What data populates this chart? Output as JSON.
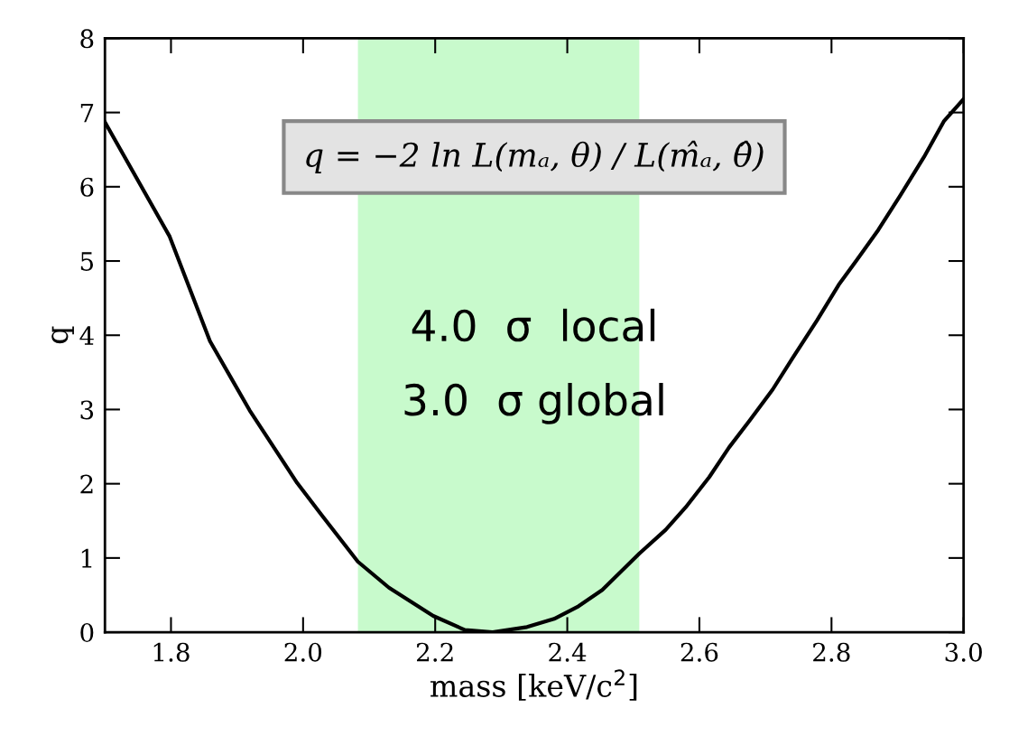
{
  "chart_data": {
    "type": "line",
    "xlabel": "mass [keV/c$^{2}$]",
    "ylabel": "q",
    "x": [
      1.7,
      1.798,
      1.859,
      1.919,
      1.991,
      2.028,
      2.083,
      2.13,
      2.197,
      2.245,
      2.287,
      2.339,
      2.38,
      2.417,
      2.453,
      2.509,
      2.549,
      2.579,
      2.615,
      2.645,
      2.676,
      2.711,
      2.741,
      2.778,
      2.811,
      2.838,
      2.871,
      2.904,
      2.94,
      2.97,
      3.0
    ],
    "series": [
      {
        "color": "#000000",
        "values": [
          6.87,
          5.33,
          3.92,
          2.99,
          2.01,
          1.58,
          0.95,
          0.6,
          0.22,
          0.03,
          0.0,
          0.07,
          0.18,
          0.35,
          0.57,
          1.06,
          1.38,
          1.68,
          2.09,
          2.49,
          2.85,
          3.27,
          3.69,
          4.2,
          4.68,
          5.01,
          5.42,
          5.88,
          6.4,
          6.88,
          7.18
        ]
      }
    ],
    "xlim": [
      1.7,
      3.0
    ],
    "xticks": [
      {
        "value": 1.8,
        "label": "1.8"
      },
      {
        "value": 2.0,
        "label": "2.0"
      },
      {
        "value": 2.2,
        "label": "2.2"
      },
      {
        "value": 2.4,
        "label": "2.4"
      },
      {
        "value": 2.6,
        "label": "2.6"
      },
      {
        "value": 2.8,
        "label": "2.8"
      },
      {
        "value": 3.0,
        "label": "3.0"
      }
    ],
    "ylim": [
      0,
      8
    ],
    "yticks": [
      0,
      1,
      2,
      3,
      4,
      5,
      6,
      7,
      8
    ],
    "bands": [
      {
        "axis": "x",
        "from": 2.083,
        "to": 2.509,
        "color": "#c8facc"
      }
    ],
    "annotations": [
      "q = −2 ln L(mₐ, θ) / L(m̂ₐ, θ̂)",
      "4.0  σ  local",
      "3.0  σ global"
    ],
    "grid": false,
    "marker": "none",
    "line_style": "solid"
  }
}
